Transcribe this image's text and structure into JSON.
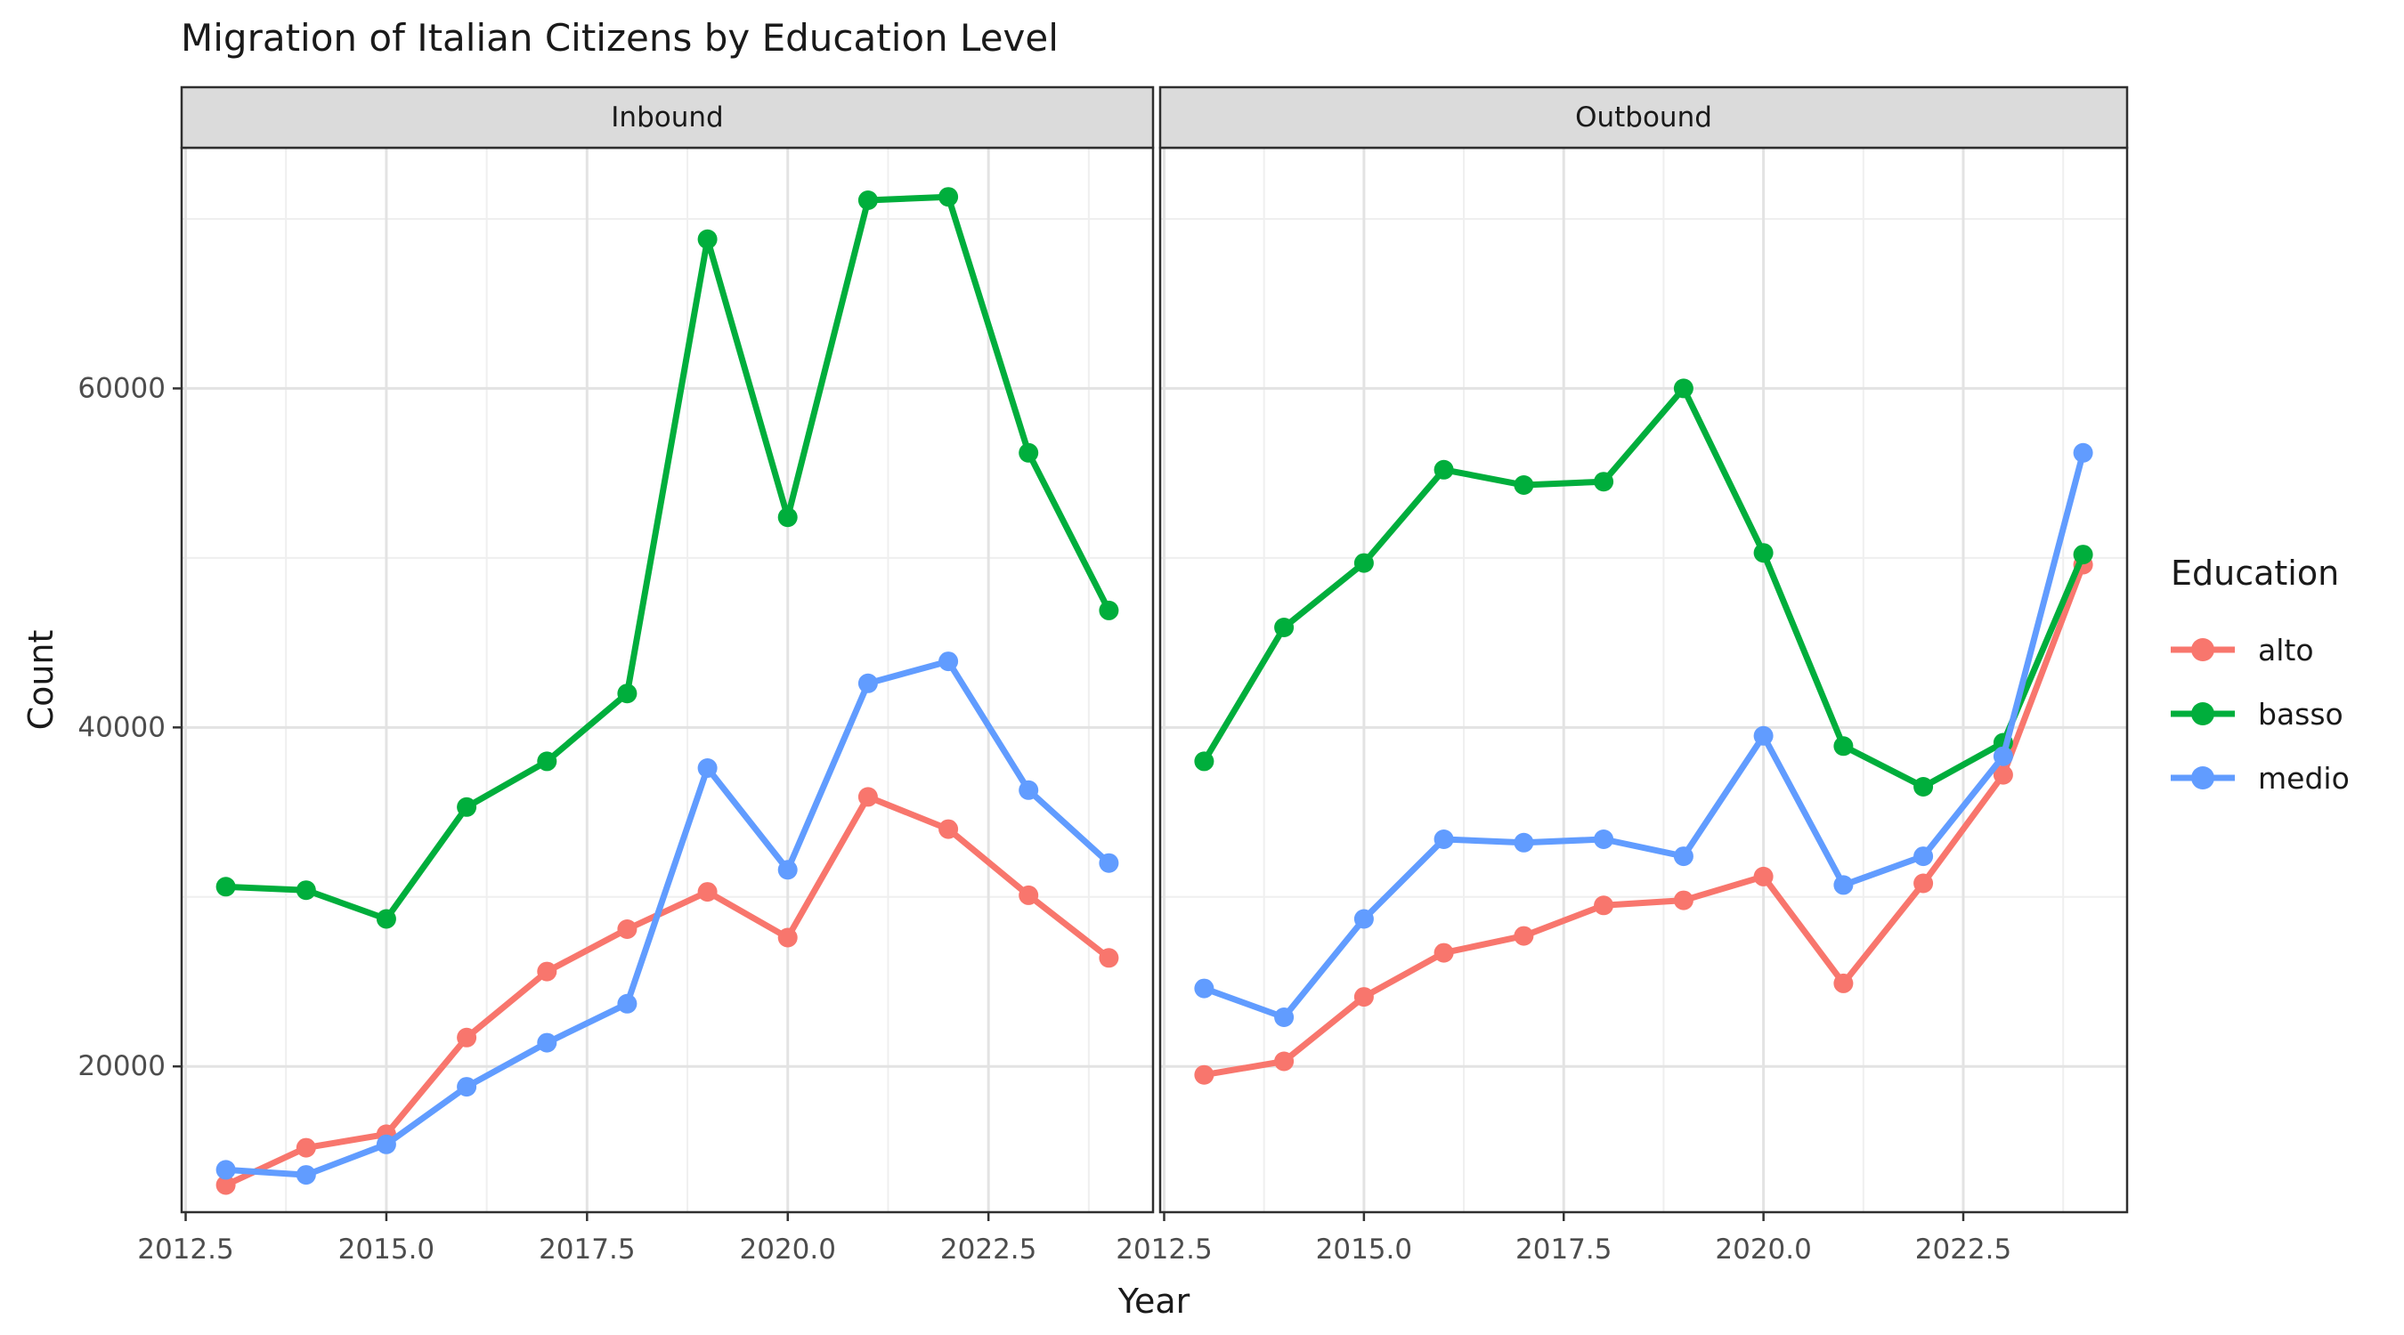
{
  "chart_data": {
    "type": "line",
    "title": "Migration of Italian Citizens by Education Level",
    "xlabel": "Year",
    "ylabel": "Count",
    "legend_title": "Education",
    "legend_position": "right",
    "grid": true,
    "x": [
      2013,
      2014,
      2015,
      2016,
      2017,
      2018,
      2019,
      2020,
      2021,
      2022,
      2023,
      2024
    ],
    "x_ticks": [
      2012.5,
      2015.0,
      2017.5,
      2020.0,
      2022.5
    ],
    "x_tick_labels": [
      "2012.5",
      "2015.0",
      "2017.5",
      "2020.0",
      "2022.5"
    ],
    "y_ticks": [
      20000,
      40000,
      60000
    ],
    "y_tick_labels": [
      "20000",
      "40000",
      "60000"
    ],
    "xlim": [
      2012.45,
      2024.55
    ],
    "ylim": [
      11400,
      74200
    ],
    "facets": [
      {
        "label": "Inbound",
        "series": [
          {
            "name": "alto",
            "color": "#F8766D",
            "values": [
              13000,
              15200,
              16000,
              21700,
              25600,
              28100,
              30300,
              27600,
              35900,
              34000,
              30100,
              26400
            ]
          },
          {
            "name": "basso",
            "color": "#00AE3C",
            "values": [
              30600,
              30400,
              28700,
              35300,
              38000,
              42000,
              68800,
              52400,
              71100,
              71300,
              56200,
              46900
            ]
          },
          {
            "name": "medio",
            "color": "#619CFF",
            "values": [
              13900,
              13600,
              15400,
              18800,
              21400,
              23700,
              37600,
              31600,
              42600,
              43900,
              36300,
              32000
            ]
          }
        ]
      },
      {
        "label": "Outbound",
        "series": [
          {
            "name": "alto",
            "color": "#F8766D",
            "values": [
              19500,
              20300,
              24100,
              26700,
              27700,
              29500,
              29800,
              31200,
              24900,
              30800,
              37200,
              49600
            ]
          },
          {
            "name": "basso",
            "color": "#00AE3C",
            "values": [
              38000,
              45900,
              49700,
              55200,
              54300,
              54500,
              60000,
              50300,
              38900,
              36500,
              39100,
              50200
            ]
          },
          {
            "name": "medio",
            "color": "#619CFF",
            "values": [
              24600,
              22900,
              28700,
              33400,
              33200,
              33400,
              32400,
              39500,
              30700,
              32400,
              38300,
              56200
            ]
          }
        ]
      }
    ],
    "style": {
      "strip_fill": "#DBDBDB",
      "panel_border": "#2F2F2F",
      "grid_major": "#E3E3E3",
      "grid_minor": "#EFEFEF",
      "tick_color": "#333333",
      "tick_label_color": "#4D4D4D",
      "strip_text_color": "#1a1a1a"
    }
  }
}
